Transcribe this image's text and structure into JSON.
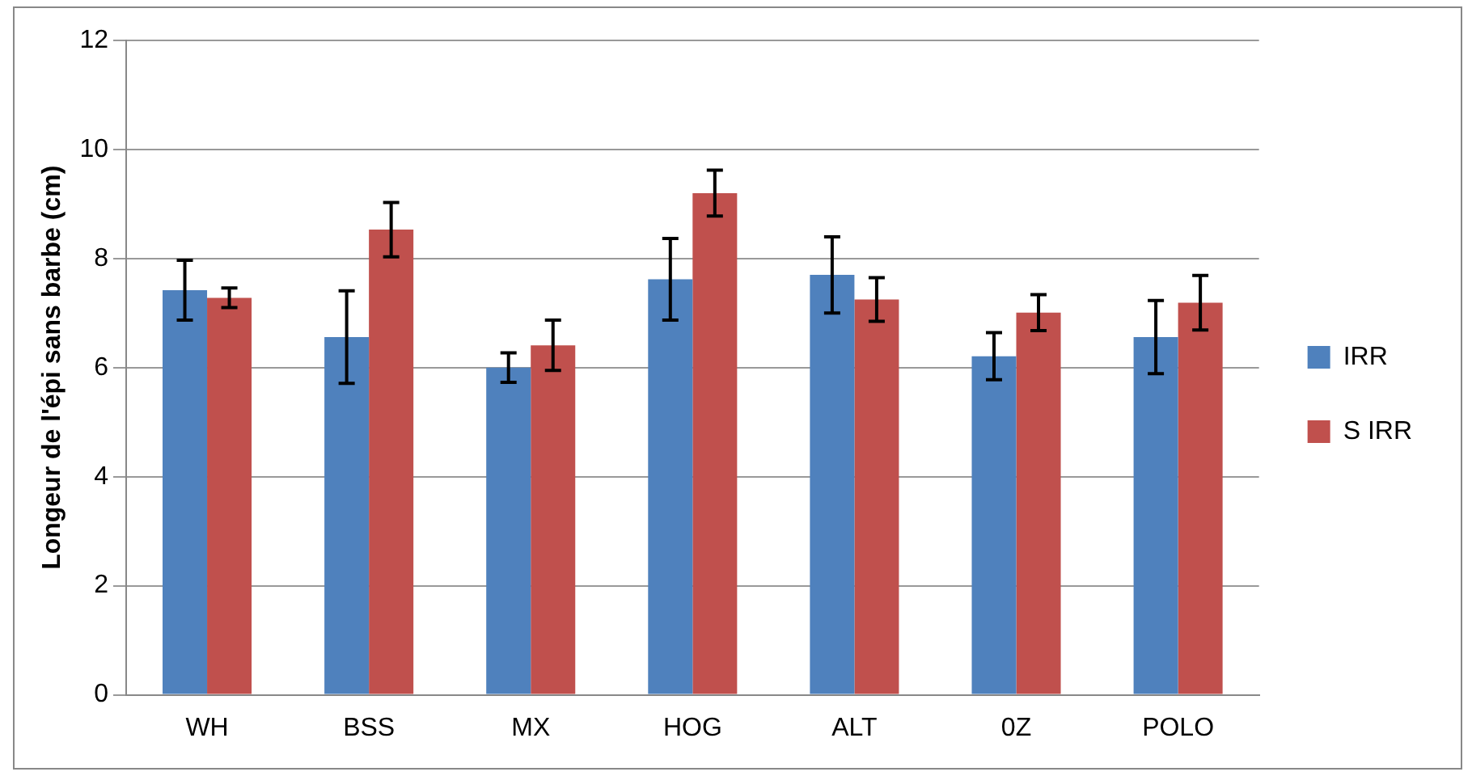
{
  "chart_data": {
    "type": "bar",
    "ylabel": "Longeur de l'épi sans barbe (cm)",
    "categories": [
      "WH",
      "BSS",
      "MX",
      "HOG",
      "ALT",
      "0Z",
      "POLO"
    ],
    "series": [
      {
        "name": "IRR",
        "color": "#4f81bd",
        "values": [
          7.42,
          6.56,
          6.0,
          7.62,
          7.7,
          6.21,
          6.56
        ],
        "errors": [
          0.55,
          0.85,
          0.27,
          0.75,
          0.7,
          0.43,
          0.67
        ]
      },
      {
        "name": "S IRR",
        "color": "#c0504d",
        "values": [
          7.28,
          8.53,
          6.41,
          9.2,
          7.25,
          7.01,
          7.19
        ],
        "errors": [
          0.18,
          0.5,
          0.46,
          0.42,
          0.4,
          0.33,
          0.5
        ]
      }
    ],
    "ylim": [
      0,
      12
    ],
    "yticks": [
      0,
      2,
      4,
      6,
      8,
      10,
      12
    ],
    "grid": "y",
    "legend": "right"
  }
}
